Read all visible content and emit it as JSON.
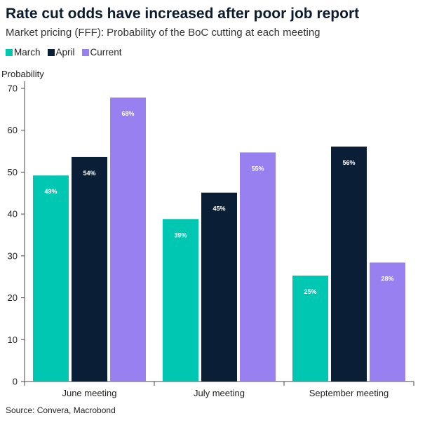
{
  "header": {
    "title": "Rate cut odds have increased after poor job report",
    "subtitle": "Market pricing (FFF): Probability of the BoC cutting at each meeting"
  },
  "footer": {
    "source": "Source: Convera, Macrobond"
  },
  "colors": {
    "March": "#00c7b1",
    "April": "#0a1f36",
    "Current": "#9880f0"
  },
  "chart_data": {
    "type": "bar",
    "title": "Rate cut odds have increased after poor job report",
    "subtitle": "Market pricing (FFF): Probability of the BoC cutting at each meeting",
    "xlabel": "",
    "ylabel": "Probability",
    "ylim": [
      0,
      70
    ],
    "yticks": [
      0,
      10,
      20,
      30,
      40,
      50,
      60,
      70
    ],
    "categories": [
      "June meeting",
      "July meeting",
      "September meeting"
    ],
    "series": [
      {
        "name": "March",
        "values": [
          49.2,
          38.8,
          25.3
        ],
        "labels": [
          "49%",
          "39%",
          "25%"
        ]
      },
      {
        "name": "April",
        "values": [
          53.6,
          45.1,
          56.1
        ],
        "labels": [
          "54%",
          "45%",
          "56%"
        ]
      },
      {
        "name": "Current",
        "values": [
          67.8,
          54.7,
          28.4
        ],
        "labels": [
          "68%",
          "55%",
          "28%"
        ]
      }
    ],
    "legend": "top-left",
    "grid": false
  }
}
